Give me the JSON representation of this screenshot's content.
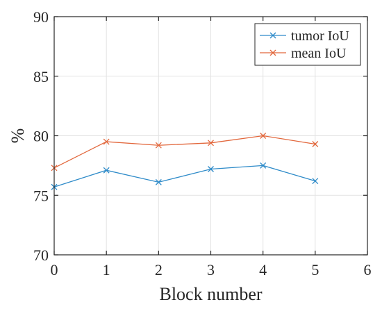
{
  "chart_data": {
    "type": "line",
    "title": "",
    "xlabel": "Block number",
    "ylabel": "%",
    "xlim": [
      0,
      6
    ],
    "ylim": [
      70,
      90
    ],
    "xticks": [
      0,
      1,
      2,
      3,
      4,
      5,
      6
    ],
    "yticks": [
      70,
      75,
      80,
      85,
      90
    ],
    "grid": true,
    "legend_position": "top-right",
    "marker": "x",
    "x": [
      0,
      1,
      2,
      3,
      4,
      5
    ],
    "series": [
      {
        "name": "tumor IoU",
        "color": "#2e8bc9",
        "values": [
          75.7,
          77.1,
          76.1,
          77.2,
          77.5,
          76.2
        ]
      },
      {
        "name": "mean IoU",
        "color": "#e2673c",
        "values": [
          77.3,
          79.5,
          79.2,
          79.4,
          80.0,
          79.3
        ]
      }
    ]
  }
}
